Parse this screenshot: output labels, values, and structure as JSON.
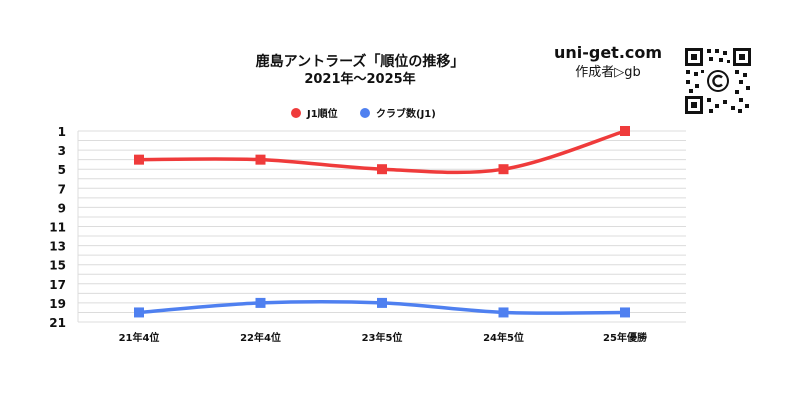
{
  "header": {
    "title": "鹿島アントラーズ「順位の推移」",
    "subtitle": "2021年～2025年",
    "site": "uni-get.com",
    "author": "作成者▷gb"
  },
  "chart_data": {
    "type": "line",
    "categories": [
      "21年4位",
      "22年4位",
      "23年5位",
      "24年5位",
      "25年優勝"
    ],
    "series": [
      {
        "name": "J1順位",
        "values": [
          4,
          4,
          5,
          5,
          1
        ],
        "color": "#ef3b3b",
        "marker": "square"
      },
      {
        "name": "クラブ数(J1)",
        "values": [
          20,
          19,
          19,
          20,
          20
        ],
        "color": "#4f80f0",
        "marker": "square"
      }
    ],
    "yticks": [
      1,
      3,
      5,
      7,
      9,
      11,
      13,
      15,
      17,
      19,
      21
    ],
    "ylim": [
      1,
      21
    ],
    "y_reversed": true,
    "grid": true,
    "legend_position": "top",
    "smooth": true
  }
}
